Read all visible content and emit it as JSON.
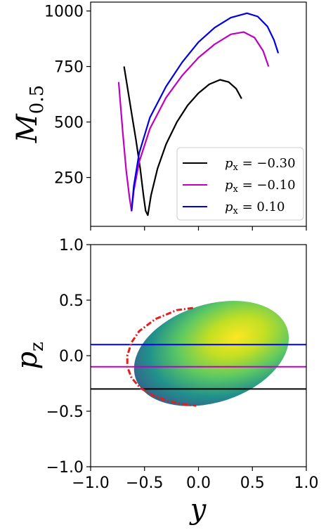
{
  "chart_data": [
    {
      "type": "line",
      "ylabel_main": "M",
      "ylabel_sub": "0.5",
      "xlim": [
        -1.0,
        1.0
      ],
      "ylim": [
        30,
        1040
      ],
      "yticks": [
        250,
        500,
        750,
        1000
      ],
      "yticklabels": [
        "250",
        "500",
        "750",
        "1000"
      ],
      "xticks": [
        -1.0,
        -0.5,
        0.0,
        0.5,
        1.0
      ],
      "legend_location": "lower-right",
      "series": [
        {
          "name": "p_x = -0.30",
          "legend_var": "p",
          "legend_sub": "x",
          "legend_value": " = −0.30",
          "color": "#000000",
          "x": [
            -0.69,
            -0.66,
            -0.62,
            -0.58,
            -0.54,
            -0.51,
            -0.49,
            -0.47,
            -0.44,
            -0.38,
            -0.3,
            -0.2,
            -0.1,
            0.0,
            0.1,
            0.2,
            0.28,
            0.35,
            0.4
          ],
          "y": [
            750,
            660,
            540,
            420,
            290,
            170,
            100,
            80,
            170,
            290,
            400,
            500,
            575,
            630,
            670,
            690,
            680,
            650,
            605
          ]
        },
        {
          "name": "p_x = -0.10",
          "legend_var": "p",
          "legend_sub": "x",
          "legend_value": " = −0.10",
          "color": "#c000c0",
          "x": [
            -0.74,
            -0.72,
            -0.7,
            -0.67,
            -0.64,
            -0.62,
            -0.6,
            -0.55,
            -0.45,
            -0.3,
            -0.15,
            0.0,
            0.15,
            0.3,
            0.42,
            0.52,
            0.6,
            0.65
          ],
          "y": [
            680,
            560,
            440,
            280,
            160,
            100,
            190,
            320,
            470,
            610,
            710,
            790,
            850,
            895,
            905,
            880,
            820,
            750
          ]
        },
        {
          "name": "p_x = 0.10",
          "legend_var": "p",
          "legend_sub": "x",
          "legend_value": " = 0.10",
          "color": "#0000e0",
          "x": [
            -0.62,
            -0.6,
            -0.55,
            -0.45,
            -0.3,
            -0.15,
            0.0,
            0.15,
            0.3,
            0.45,
            0.55,
            0.64,
            0.7,
            0.74
          ],
          "y": [
            100,
            210,
            360,
            520,
            660,
            770,
            860,
            925,
            970,
            990,
            975,
            930,
            870,
            810
          ]
        }
      ]
    },
    {
      "type": "heatmap",
      "ylabel_main": "p",
      "ylabel_sub": "z",
      "xlabel": "y",
      "xlim": [
        -1.0,
        1.0
      ],
      "ylim": [
        -1.0,
        1.0
      ],
      "xticks": [
        -1.0,
        -0.5,
        0.0,
        0.5,
        1.0
      ],
      "xticklabels": [
        "−1.0",
        "−0.5",
        "0.0",
        "0.5",
        "1.0"
      ],
      "yticks": [
        -1.0,
        -0.5,
        0.0,
        0.5,
        1.0
      ],
      "yticklabels": [
        "−1.0",
        "−0.5",
        "0.0",
        "0.5",
        "1.0"
      ],
      "colormap": "viridis",
      "region": {
        "shape": "ellipse",
        "center": [
          0.12,
          0.02
        ],
        "semi_axis_x": 0.74,
        "semi_axis_z": 0.44,
        "rotation_deg": 18
      },
      "horizontal_lines": [
        {
          "p_z": 0.1,
          "color": "#0000e0"
        },
        {
          "p_z": -0.1,
          "color": "#c000c0"
        },
        {
          "p_z": -0.3,
          "color": "#000000"
        }
      ],
      "boundary_curve": {
        "color": "#e02020",
        "style": "dash-dot",
        "y": [
          -0.05,
          -0.2,
          -0.4,
          -0.55,
          -0.62,
          -0.66,
          -0.66,
          -0.62,
          -0.54,
          -0.42,
          -0.28,
          -0.12,
          -0.02
        ],
        "p_z": [
          0.43,
          0.41,
          0.33,
          0.22,
          0.12,
          0.0,
          -0.1,
          -0.2,
          -0.29,
          -0.36,
          -0.41,
          -0.44,
          -0.45
        ]
      }
    }
  ]
}
